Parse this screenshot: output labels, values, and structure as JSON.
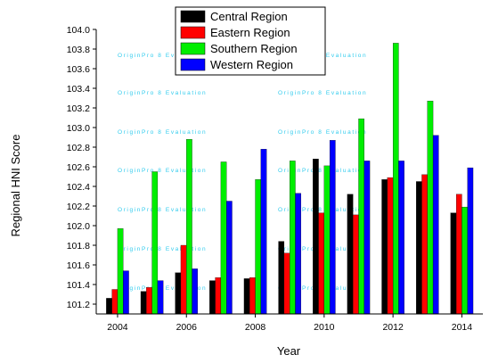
{
  "chart_data": {
    "type": "bar",
    "xlabel": "Year",
    "ylabel": "Regional HNI Score",
    "ylim": [
      101.1,
      104.0
    ],
    "yticks": [
      "101.2",
      "101.4",
      "101.6",
      "101.8",
      "102.0",
      "102.2",
      "102.4",
      "102.6",
      "102.8",
      "103.0",
      "103.2",
      "103.4",
      "103.6",
      "103.8",
      "104.0"
    ],
    "xticks": [
      "2004",
      "2006",
      "2008",
      "2010",
      "2012",
      "2014"
    ],
    "categories": [
      "2004",
      "2005",
      "2006",
      "2007",
      "2008",
      "2009",
      "2010",
      "2011",
      "2012",
      "2013",
      "2014"
    ],
    "legend_position": "top-center",
    "series": [
      {
        "name": "Central Region",
        "color": "#000000",
        "values": [
          101.26,
          101.33,
          101.52,
          101.44,
          101.46,
          101.84,
          102.68,
          102.32,
          102.47,
          102.45,
          102.13
        ]
      },
      {
        "name": "Eastern Region",
        "color": "#ff0000",
        "values": [
          101.35,
          101.37,
          101.8,
          101.47,
          101.47,
          101.72,
          102.13,
          102.11,
          102.49,
          102.52,
          102.32
        ]
      },
      {
        "name": "Southern Region",
        "color": "#00ee00",
        "values": [
          101.97,
          102.55,
          102.88,
          102.65,
          102.47,
          102.66,
          102.61,
          103.09,
          103.86,
          103.27,
          102.19
        ]
      },
      {
        "name": "Western Region",
        "color": "#0000ff",
        "values": [
          101.54,
          101.44,
          101.56,
          102.25,
          102.78,
          102.33,
          102.87,
          102.66,
          102.66,
          102.92,
          102.59
        ]
      }
    ],
    "watermark": "OriginPro 8 Evaluation"
  }
}
